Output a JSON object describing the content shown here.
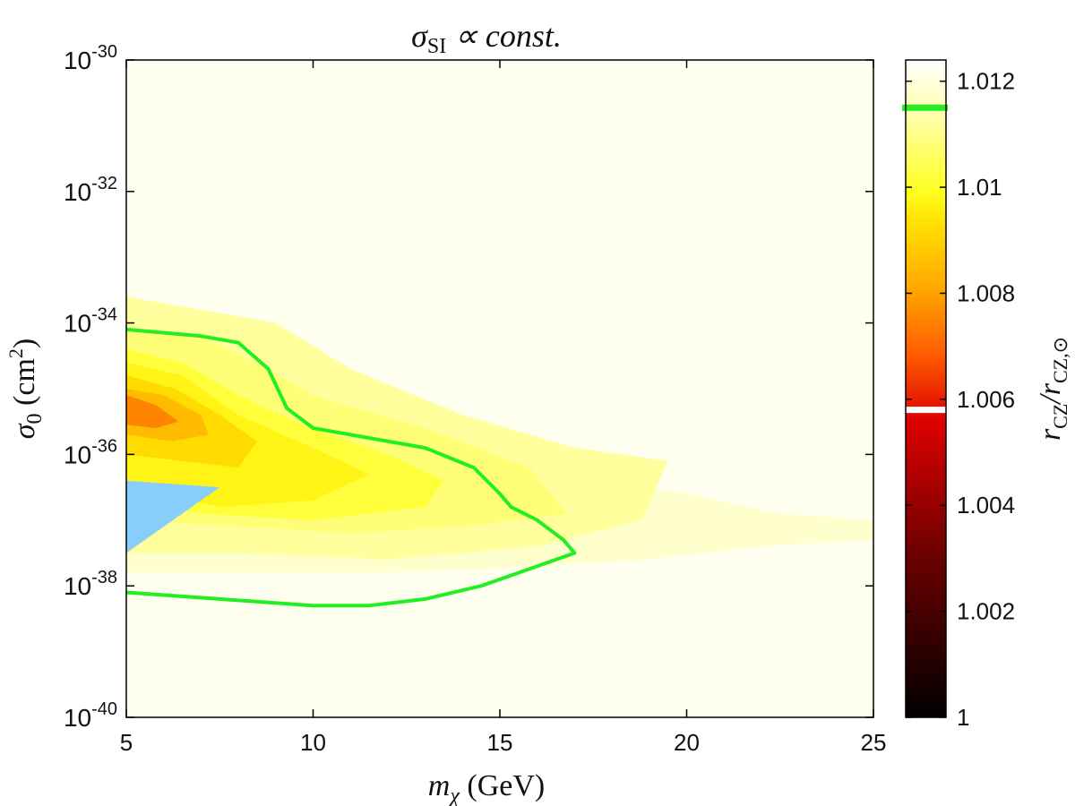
{
  "chart_data": {
    "type": "contour",
    "title": "σSI ∝ const.",
    "title_parts": {
      "sigma": "σ",
      "sub": "SI",
      "rest": " ∝ const."
    },
    "xlabel": "mχ (GeV)",
    "xlabel_parts": {
      "m": "m",
      "sub": "χ",
      "rest": " (GeV)"
    },
    "ylabel": "σ0 (cm2)",
    "ylabel_parts": {
      "sigma": "σ",
      "sub": "0",
      "rest": " (cm",
      "sup": "2",
      "close": ")"
    },
    "xlim": [
      5,
      25
    ],
    "ylim_log10": [
      -40,
      -30
    ],
    "x_ticks": [
      {
        "value": 5,
        "label": "5"
      },
      {
        "value": 10,
        "label": "10"
      },
      {
        "value": 15,
        "label": "15"
      },
      {
        "value": 20,
        "label": "20"
      },
      {
        "value": 25,
        "label": "25"
      }
    ],
    "y_ticks": [
      {
        "exp": -30,
        "base": "10",
        "sup": "-30"
      },
      {
        "exp": -32,
        "base": "10",
        "sup": "-32"
      },
      {
        "exp": -34,
        "base": "10",
        "sup": "-34"
      },
      {
        "exp": -36,
        "base": "10",
        "sup": "-36"
      },
      {
        "exp": -38,
        "base": "10",
        "sup": "-38"
      },
      {
        "exp": -40,
        "base": "10",
        "sup": "-40"
      }
    ],
    "colorbar": {
      "label": "rCZ/rCZ,⊙",
      "label_parts": {
        "r1": "r",
        "sub1": "CZ",
        "slash": "/",
        "r2": "r",
        "sub2": "CZ,⊙"
      },
      "range": [
        1.0,
        1.0124
      ],
      "ticks": [
        {
          "value": 1.012,
          "label": "1.012"
        },
        {
          "value": 1.01,
          "label": "1.01"
        },
        {
          "value": 1.008,
          "label": "1.008"
        },
        {
          "value": 1.006,
          "label": "1.006"
        },
        {
          "value": 1.004,
          "label": "1.004"
        },
        {
          "value": 1.002,
          "label": "1.002"
        },
        {
          "value": 1.0,
          "label": "1"
        }
      ],
      "markers": [
        {
          "value": 1.0115,
          "color": "#22ee22"
        },
        {
          "value": 1.0058,
          "color": "#ffffff"
        }
      ],
      "colormap": [
        {
          "v": 0.0,
          "color": "#000000"
        },
        {
          "v": 0.25,
          "color": "#6e0000"
        },
        {
          "v": 0.45,
          "color": "#dd0000"
        },
        {
          "v": 0.55,
          "color": "#ff5a00"
        },
        {
          "v": 0.65,
          "color": "#ffa600"
        },
        {
          "v": 0.75,
          "color": "#ffe000"
        },
        {
          "v": 0.8,
          "color": "#ffff20"
        },
        {
          "v": 0.9,
          "color": "#ffff9a"
        },
        {
          "v": 1.0,
          "color": "#ffffff"
        }
      ]
    },
    "background_value": 1.0122,
    "filled_contours": [
      {
        "value": 1.0118,
        "points": [
          [
            5,
            -35.1
          ],
          [
            7,
            -34.9
          ],
          [
            9,
            -35.0
          ],
          [
            12,
            -35.4
          ],
          [
            15,
            -35.9
          ],
          [
            18,
            -36.4
          ],
          [
            20,
            -36.6
          ],
          [
            22.5,
            -36.9
          ],
          [
            25,
            -37.0
          ],
          [
            25,
            -37.3
          ],
          [
            22,
            -37.4
          ],
          [
            19,
            -37.6
          ],
          [
            16,
            -37.7
          ],
          [
            12,
            -37.8
          ],
          [
            8,
            -37.8
          ],
          [
            5,
            -37.8
          ]
        ]
      },
      {
        "value": 1.0112,
        "points": [
          [
            5,
            -33.6
          ],
          [
            7,
            -33.8
          ],
          [
            9,
            -34.0
          ],
          [
            11,
            -34.7
          ],
          [
            14,
            -35.4
          ],
          [
            17,
            -35.9
          ],
          [
            19.5,
            -36.1
          ],
          [
            18.8,
            -37.0
          ],
          [
            16,
            -37.4
          ],
          [
            12,
            -37.6
          ],
          [
            8,
            -37.5
          ],
          [
            5,
            -37.5
          ]
        ]
      },
      {
        "value": 1.0108,
        "points": [
          [
            5,
            -34.1
          ],
          [
            7,
            -34.2
          ],
          [
            8.8,
            -34.7
          ],
          [
            10,
            -35.1
          ],
          [
            13,
            -35.6
          ],
          [
            15.8,
            -36.2
          ],
          [
            16.8,
            -36.9
          ],
          [
            14,
            -37.1
          ],
          [
            11,
            -37.2
          ],
          [
            8,
            -37.1
          ],
          [
            5,
            -37.0
          ]
        ]
      },
      {
        "value": 1.0102,
        "points": [
          [
            5,
            -34.4
          ],
          [
            6.5,
            -34.6
          ],
          [
            8,
            -35.1
          ],
          [
            9.5,
            -35.5
          ],
          [
            12,
            -36.0
          ],
          [
            13.5,
            -36.4
          ],
          [
            13,
            -36.8
          ],
          [
            10,
            -37.0
          ],
          [
            7,
            -36.9
          ],
          [
            5,
            -36.7
          ]
        ]
      },
      {
        "value": 1.0097,
        "points": [
          [
            5,
            -34.6
          ],
          [
            6.5,
            -34.8
          ],
          [
            8,
            -35.4
          ],
          [
            10,
            -35.9
          ],
          [
            11.5,
            -36.3
          ],
          [
            10,
            -36.7
          ],
          [
            7.5,
            -36.8
          ],
          [
            5,
            -36.5
          ]
        ]
      },
      {
        "value": 1.0092,
        "points": [
          [
            5,
            -34.8
          ],
          [
            6.3,
            -35.0
          ],
          [
            7.5,
            -35.4
          ],
          [
            8.5,
            -35.8
          ],
          [
            8,
            -36.2
          ],
          [
            6.5,
            -36.1
          ],
          [
            5,
            -36.0
          ]
        ]
      },
      {
        "value": 1.0085,
        "points": [
          [
            5,
            -35.0
          ],
          [
            6,
            -35.1
          ],
          [
            7,
            -35.4
          ],
          [
            7.2,
            -35.7
          ],
          [
            6.2,
            -35.8
          ],
          [
            5,
            -35.7
          ]
        ]
      },
      {
        "value": 1.0075,
        "points": [
          [
            5,
            -35.1
          ],
          [
            5.8,
            -35.25
          ],
          [
            6.4,
            -35.5
          ],
          [
            5.8,
            -35.6
          ],
          [
            5,
            -35.55
          ]
        ]
      }
    ],
    "excluded_region": {
      "color": "#87cefa",
      "points": [
        [
          5,
          -36.4
        ],
        [
          7.5,
          -36.5
        ],
        [
          5,
          -37.5
        ]
      ]
    },
    "contour_line": {
      "color": "#22ee22",
      "value": 1.0115,
      "points": [
        [
          5,
          -34.1
        ],
        [
          7,
          -34.2
        ],
        [
          8,
          -34.3
        ],
        [
          8.8,
          -34.7
        ],
        [
          9.3,
          -35.3
        ],
        [
          10,
          -35.6
        ],
        [
          13,
          -35.9
        ],
        [
          14.3,
          -36.2
        ],
        [
          15,
          -36.6
        ],
        [
          15.3,
          -36.8
        ],
        [
          16,
          -37.0
        ],
        [
          16.7,
          -37.3
        ],
        [
          17,
          -37.5
        ],
        [
          16,
          -37.7
        ],
        [
          14.5,
          -38.0
        ],
        [
          13,
          -38.2
        ],
        [
          11.5,
          -38.3
        ],
        [
          10,
          -38.3
        ],
        [
          7.5,
          -38.2
        ],
        [
          5,
          -38.1
        ]
      ]
    }
  }
}
